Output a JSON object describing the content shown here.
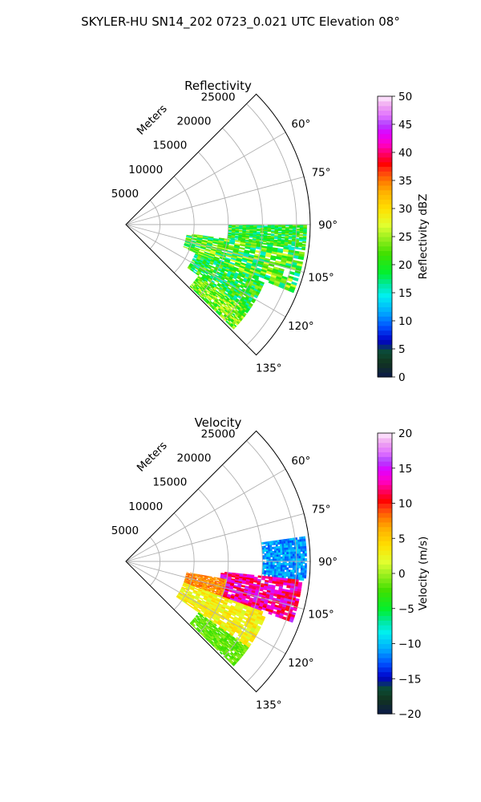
{
  "title": "SKYLER-HU  SN14_202  0723_0.021 UTC Elevation 08°",
  "chart_data": [
    {
      "type": "polar-sector",
      "title": "Reflectivity",
      "r_axis_label": "Meters",
      "r_ticks": [
        "5000",
        "10000",
        "15000",
        "20000",
        "25000"
      ],
      "r_range": [
        0,
        27000
      ],
      "theta_range_deg": [
        45,
        135
      ],
      "theta_ticks": [
        "60°",
        "75°",
        "90°",
        "105°",
        "120°",
        "135°"
      ],
      "grid": true,
      "colorbar": {
        "label": "Reflectivity dBZ",
        "range": [
          0,
          50
        ],
        "ticks": [
          "0",
          "5",
          "10",
          "15",
          "20",
          "25",
          "30",
          "35",
          "40",
          "45",
          "50"
        ]
      },
      "echo_summary": [
        {
          "theta_deg": [
            90,
            98
          ],
          "r_m": [
            15000,
            26500
          ],
          "value_range": [
            15,
            25
          ]
        },
        {
          "theta_deg": [
            98,
            112
          ],
          "r_m": [
            9000,
            26500
          ],
          "value_range": [
            15,
            28
          ]
        },
        {
          "theta_deg": [
            112,
            125
          ],
          "r_m": [
            11000,
            22000
          ],
          "value_range": [
            15,
            25
          ]
        },
        {
          "theta_deg": [
            125,
            134
          ],
          "r_m": [
            13000,
            22000
          ],
          "value_range": [
            18,
            28
          ]
        }
      ]
    },
    {
      "type": "polar-sector",
      "title": "Velocity",
      "r_axis_label": "Meters",
      "r_ticks": [
        "5000",
        "10000",
        "15000",
        "20000",
        "25000"
      ],
      "r_range": [
        0,
        27000
      ],
      "theta_range_deg": [
        45,
        135
      ],
      "theta_ticks": [
        "60°",
        "75°",
        "90°",
        "105°",
        "120°",
        "135°"
      ],
      "grid": true,
      "colorbar": {
        "label": "Velocity (m/s)",
        "range": [
          -20,
          20
        ],
        "ticks": [
          "−20",
          "−15",
          "−10",
          "−5",
          "0",
          "5",
          "10",
          "15",
          "20"
        ]
      },
      "echo_summary": [
        {
          "theta_deg": [
            82,
            96
          ],
          "r_m": [
            20000,
            26500
          ],
          "value_range": [
            -13,
            -9
          ]
        },
        {
          "theta_deg": [
            96,
            110
          ],
          "r_m": [
            14000,
            26000
          ],
          "value_range": [
            10,
            16
          ]
        },
        {
          "theta_deg": [
            100,
            110
          ],
          "r_m": [
            9000,
            15000
          ],
          "value_range": [
            6,
            9
          ]
        },
        {
          "theta_deg": [
            110,
            125
          ],
          "r_m": [
            9000,
            22000
          ],
          "value_range": [
            1,
            5
          ]
        },
        {
          "theta_deg": [
            125,
            134
          ],
          "r_m": [
            13000,
            22000
          ],
          "value_range": [
            -3,
            0
          ]
        }
      ]
    }
  ]
}
